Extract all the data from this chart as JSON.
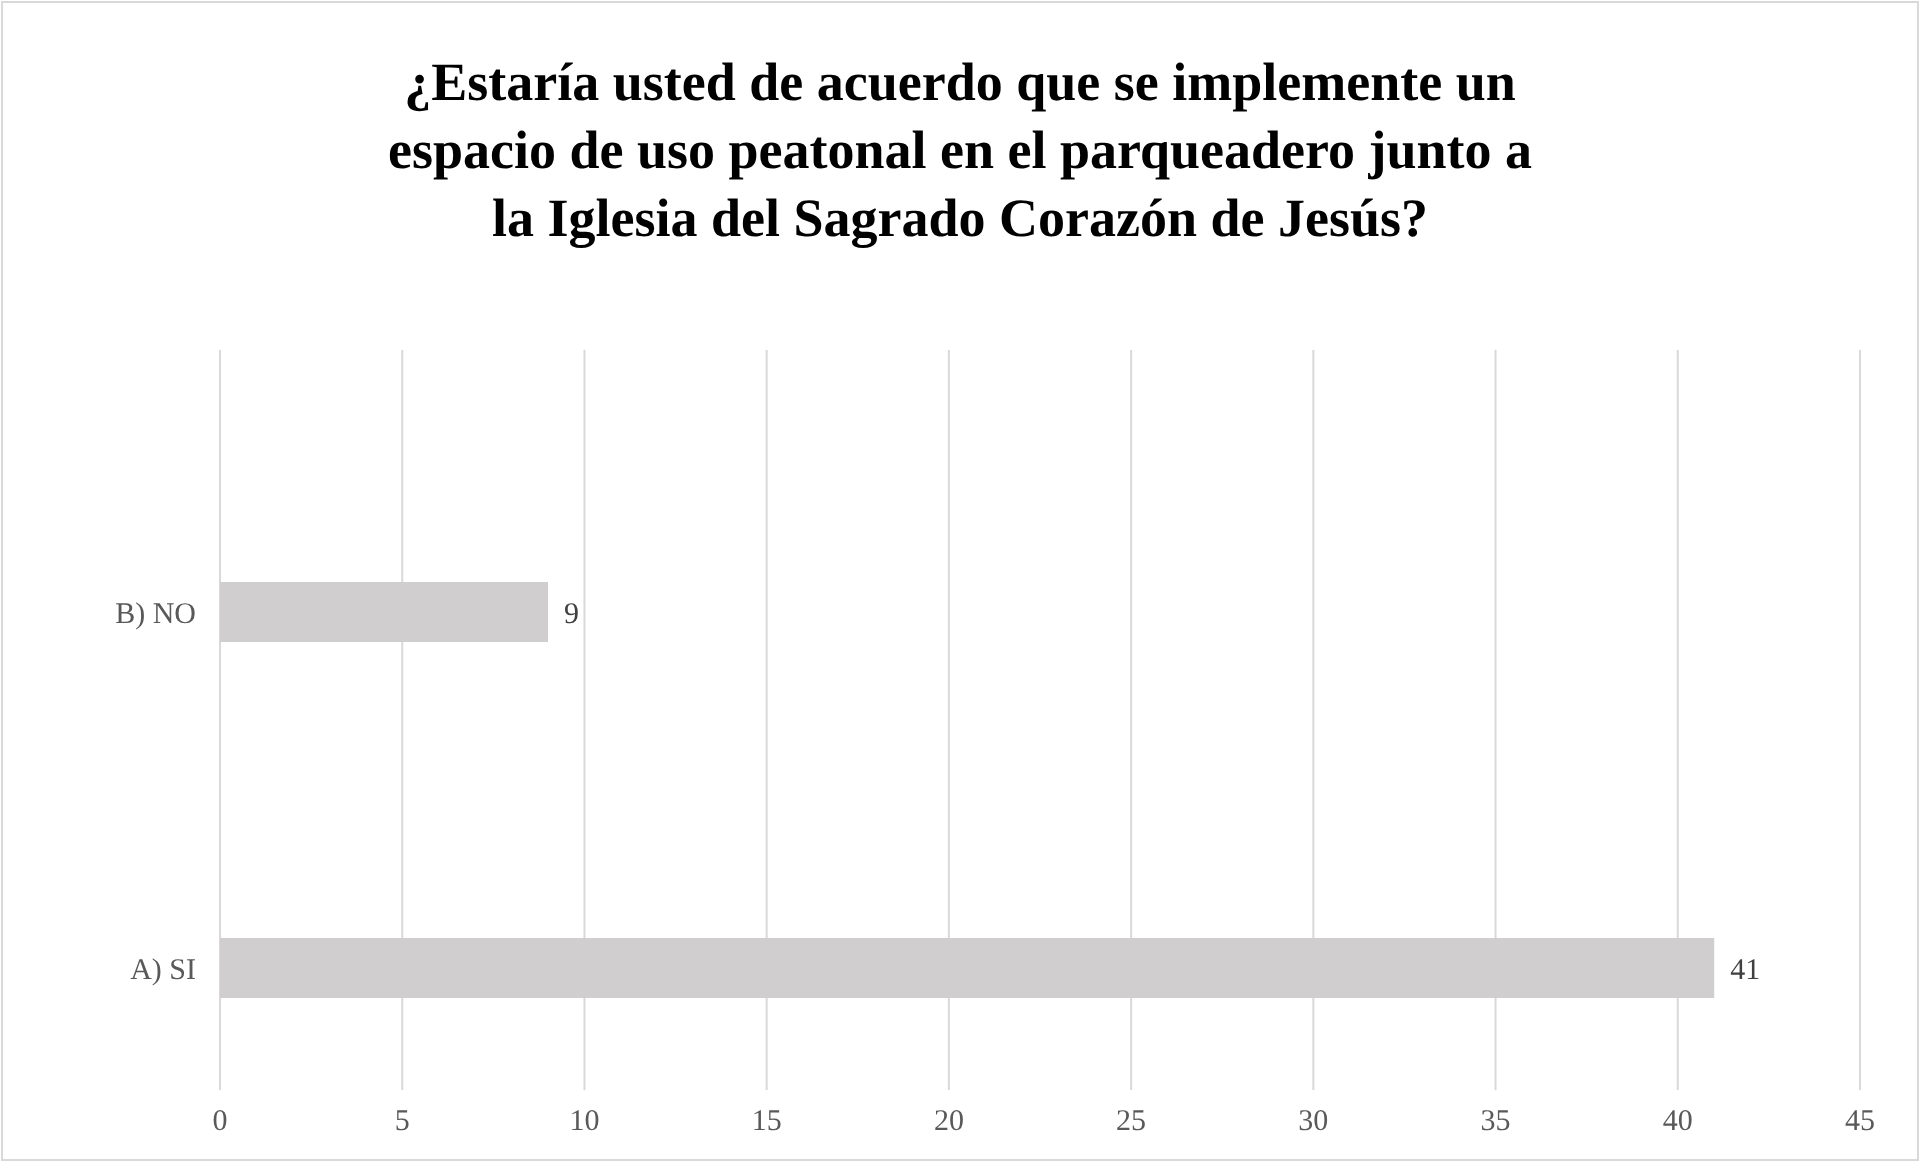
{
  "chart_data": {
    "type": "bar",
    "orientation": "horizontal",
    "title": "¿Estaría usted de acuerdo que se implemente un espacio de uso peatonal en el parqueadero junto a la Iglesia del Sagrado Corazón de Jesús?",
    "categories": [
      "B) NO",
      "A) SI"
    ],
    "values": [
      9,
      41
    ],
    "color": "#d0cece",
    "xlim": [
      0,
      45
    ],
    "xticks": [
      0,
      5,
      10,
      15,
      20,
      25,
      30,
      35,
      40,
      45
    ],
    "grid": "x",
    "data_labels": true
  }
}
